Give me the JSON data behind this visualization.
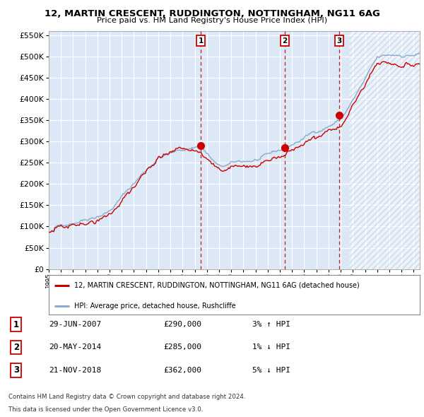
{
  "title": "12, MARTIN CRESCENT, RUDDINGTON, NOTTINGHAM, NG11 6AG",
  "subtitle": "Price paid vs. HM Land Registry's House Price Index (HPI)",
  "legend_line1": "12, MARTIN CRESCENT, RUDDINGTON, NOTTINGHAM, NG11 6AG (detached house)",
  "legend_line2": "HPI: Average price, detached house, Rushcliffe",
  "footnote1": "Contains HM Land Registry data © Crown copyright and database right 2024.",
  "footnote2": "This data is licensed under the Open Government Licence v3.0.",
  "sales": [
    {
      "num": 1,
      "date": "29-JUN-2007",
      "price": 290000,
      "hpi_text": "3% ↑ HPI",
      "year": 2007.49
    },
    {
      "num": 2,
      "date": "20-MAY-2014",
      "price": 285000,
      "hpi_text": "1% ↓ HPI",
      "year": 2014.38
    },
    {
      "num": 3,
      "date": "21-NOV-2018",
      "price": 362000,
      "hpi_text": "5% ↓ HPI",
      "year": 2018.89
    }
  ],
  "ylim": [
    0,
    560000
  ],
  "xlim_start": 1995.0,
  "xlim_end": 2025.5,
  "background_color": "#dce8f5",
  "hatch_region_start": 2019.75,
  "red_line_color": "#cc0000",
  "blue_line_color": "#88aacc",
  "marker_color": "#cc0000",
  "grid_color": "#ffffff"
}
